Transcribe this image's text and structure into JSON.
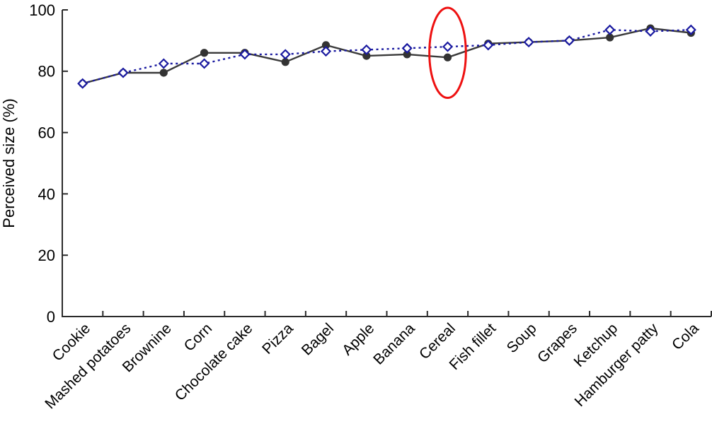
{
  "figure": {
    "background": "#ffffff"
  },
  "chart_data": {
    "type": "line",
    "title": "",
    "xlabel": "",
    "ylabel": "Perceived size (%)",
    "ylim": [
      0,
      100
    ],
    "yticks": [
      0,
      20,
      40,
      60,
      80,
      100
    ],
    "grid": false,
    "legend": "none",
    "axis_color": "#2b2b2b",
    "tick_label_color": "#000000",
    "categories": [
      "Cookie",
      "Mashed potatoes",
      "Brownine",
      "Corn",
      "Chocolate cake",
      "Pizza",
      "Bagel",
      "Apple",
      "Banana",
      "Cereal",
      "Fish fillet",
      "Soup",
      "Grapes",
      "Ketchup",
      "Hamburger patty",
      "Cola"
    ],
    "series": [
      {
        "name": "solid-filled-circles",
        "marker": "circle",
        "line_style": "solid",
        "color": "#3a3a3a",
        "marker_fill": "#333333",
        "values": [
          76,
          79.5,
          79.5,
          86,
          86,
          83,
          88.5,
          85,
          85.5,
          84.5,
          89,
          89.5,
          90,
          91,
          94,
          92.5
        ]
      },
      {
        "name": "dotted-open-diamonds",
        "marker": "diamond",
        "line_style": "dotted",
        "color": "#1a1aa0",
        "marker_fill": "#ffffff",
        "values": [
          76,
          79.5,
          82.5,
          82.5,
          85.5,
          85.5,
          86.5,
          87,
          87.5,
          88,
          88.5,
          89.5,
          90,
          93.5,
          93,
          93.5
        ]
      }
    ],
    "annotation": {
      "shape": "ellipse",
      "category": "Cereal",
      "color": "#ee1111",
      "center_value": 86,
      "ry_value": 14.7,
      "rx_category_fraction": 0.45,
      "stroke_width": 3
    }
  }
}
